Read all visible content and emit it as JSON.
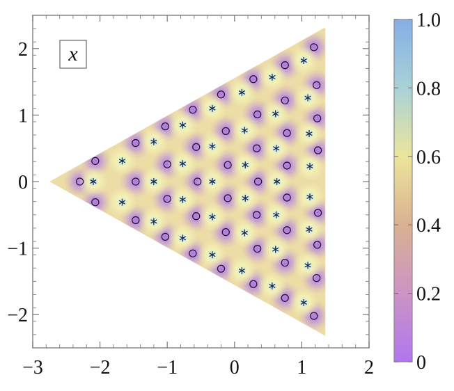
{
  "chart_data": {
    "type": "heatmap",
    "title": "",
    "xlabel": "",
    "ylabel": "",
    "xlim": [
      -3,
      2
    ],
    "ylim": [
      -2.5,
      2.5
    ],
    "x_ticks": [
      -3,
      -2,
      -1,
      0,
      1,
      2
    ],
    "y_ticks": [
      -2,
      -1,
      0,
      1,
      2
    ],
    "x_tick_labels": [
      "−3",
      "−2",
      "−1",
      "0",
      "1",
      "2"
    ],
    "y_tick_labels": [
      "−2",
      "−1",
      "0",
      "1",
      "2"
    ],
    "grid": false,
    "region_vertices": [
      [
        -2.75,
        0
      ],
      [
        1.35,
        2.32
      ],
      [
        1.35,
        -2.32
      ]
    ],
    "panel_label": "x",
    "colorbar": {
      "min": 0,
      "max": 1,
      "ticks": [
        0,
        0.2,
        0.4,
        0.6,
        0.8,
        1.0
      ],
      "tick_labels": [
        "0",
        "0.2",
        "0.4",
        "0.6",
        "0.8",
        "1.0"
      ],
      "colors": [
        "#b076ee",
        "#cc94c5",
        "#d9b191",
        "#ece59b",
        "#a9d2d8",
        "#84aee6"
      ]
    },
    "colors": {
      "field_base": "#ecdca6",
      "zero_halo": "#c0a0d8",
      "pole_halo": "#cde9e6"
    },
    "series": [
      {
        "marker": "circle",
        "points": [
          [
            -2.3,
            0
          ],
          [
            -2.07,
            0.31
          ],
          [
            -2.07,
            -0.31
          ],
          [
            -1.47,
            0.58
          ],
          [
            -1.47,
            0
          ],
          [
            -1.47,
            -0.58
          ],
          [
            -1.03,
            0.83
          ],
          [
            -1.03,
            -0.83
          ],
          [
            -1.0,
            0.26
          ],
          [
            -1.0,
            -0.26
          ],
          [
            -0.62,
            1.08
          ],
          [
            -0.62,
            -1.08
          ],
          [
            -0.57,
            0.52
          ],
          [
            -0.57,
            -0.52
          ],
          [
            -0.55,
            0
          ],
          [
            -0.13,
            0.76
          ],
          [
            -0.13,
            -0.76
          ],
          [
            -0.1,
            0.25
          ],
          [
            -0.1,
            -0.25
          ],
          [
            -0.2,
            1.31
          ],
          [
            -0.2,
            -1.31
          ],
          [
            0.28,
            1.54
          ],
          [
            0.28,
            -1.54
          ],
          [
            0.34,
            1.01
          ],
          [
            0.34,
            -1.01
          ],
          [
            0.33,
            0.5
          ],
          [
            0.33,
            -0.5
          ],
          [
            0.35,
            0
          ],
          [
            0.75,
            1.75
          ],
          [
            0.75,
            -1.75
          ],
          [
            0.75,
            1.22
          ],
          [
            0.75,
            -1.22
          ],
          [
            0.78,
            0.73
          ],
          [
            0.78,
            -0.73
          ],
          [
            0.78,
            0.24
          ],
          [
            0.78,
            -0.24
          ],
          [
            1.18,
            2.02
          ],
          [
            1.18,
            -2.02
          ],
          [
            1.22,
            1.45
          ],
          [
            1.22,
            -1.45
          ],
          [
            1.23,
            0.95
          ],
          [
            1.23,
            -0.95
          ],
          [
            1.24,
            0.47
          ],
          [
            1.24,
            -0.47
          ]
        ]
      },
      {
        "marker": "asterisk",
        "points": [
          [
            -2.1,
            0
          ],
          [
            -1.67,
            0.31
          ],
          [
            -1.67,
            -0.31
          ],
          [
            -1.2,
            0.6
          ],
          [
            -1.2,
            0
          ],
          [
            -1.2,
            -0.6
          ],
          [
            -0.77,
            0.85
          ],
          [
            -0.77,
            0.27
          ],
          [
            -0.77,
            -0.27
          ],
          [
            -0.77,
            -0.85
          ],
          [
            -0.33,
            1.1
          ],
          [
            -0.33,
            0.53
          ],
          [
            -0.33,
            0
          ],
          [
            -0.33,
            -0.53
          ],
          [
            -0.33,
            -1.1
          ],
          [
            0.11,
            1.34
          ],
          [
            0.15,
            0.77
          ],
          [
            0.16,
            0.25
          ],
          [
            0.16,
            -0.25
          ],
          [
            0.15,
            -0.77
          ],
          [
            0.11,
            -1.34
          ],
          [
            0.56,
            1.57
          ],
          [
            0.61,
            1.02
          ],
          [
            0.62,
            0.5
          ],
          [
            0.63,
            0
          ],
          [
            0.62,
            -0.5
          ],
          [
            0.61,
            -1.02
          ],
          [
            0.56,
            -1.57
          ],
          [
            1.03,
            1.82
          ],
          [
            1.09,
            1.26
          ],
          [
            1.11,
            0.72
          ],
          [
            1.12,
            0.23
          ],
          [
            1.12,
            -0.23
          ],
          [
            1.11,
            -0.72
          ],
          [
            1.09,
            -1.26
          ],
          [
            1.03,
            -1.82
          ]
        ]
      }
    ]
  }
}
